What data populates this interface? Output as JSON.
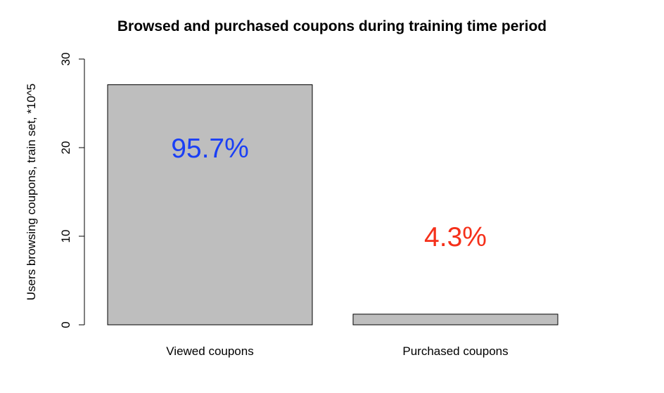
{
  "chart_data": {
    "type": "bar",
    "title": "Browsed and purchased coupons during training time period",
    "xlabel": "",
    "ylabel": "Users browsing coupons, train set, *10^5",
    "ylim": [
      0,
      30
    ],
    "yticks": [
      "0",
      "10",
      "20",
      "30"
    ],
    "ytick_values": [
      0,
      10,
      20,
      30
    ],
    "categories": [
      "Viewed coupons",
      "Purchased coupons"
    ],
    "values": [
      27.1,
      1.2
    ],
    "annotations": [
      {
        "text": "95.7%",
        "color": "#1a3ff5",
        "y": 20
      },
      {
        "text": "4.3%",
        "color": "#f5301a",
        "y": 10
      }
    ],
    "bar_color": "#bebebe",
    "grid": false,
    "legend": "none"
  }
}
